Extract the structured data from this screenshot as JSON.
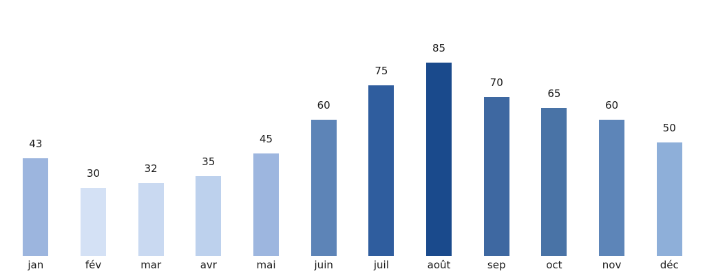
{
  "chart_data": {
    "type": "bar",
    "title": "",
    "xlabel": "",
    "ylabel": "",
    "categories": [
      "jan",
      "fév",
      "mar",
      "avr",
      "mai",
      "juin",
      "juil",
      "août",
      "sep",
      "oct",
      "nov",
      "déc"
    ],
    "values": [
      43,
      30,
      32,
      35,
      45,
      60,
      75,
      85,
      70,
      65,
      60,
      50
    ],
    "value_labels": [
      "43",
      "30",
      "32",
      "35",
      "45",
      "60",
      "75",
      "85",
      "70",
      "65",
      "60",
      "50"
    ],
    "bar_colors": [
      "#9cb5de",
      "#d4e1f5",
      "#c9d9f1",
      "#bdd1ed",
      "#9db6df",
      "#5d84b7",
      "#2f5d9e",
      "#1a4a8c",
      "#3e68a1",
      "#4973a6",
      "#5d85b8",
      "#8eafd9"
    ],
    "grid": false,
    "axes_visible": false,
    "legend": null,
    "background_color": "#ffffff",
    "text_color": "#191919"
  }
}
